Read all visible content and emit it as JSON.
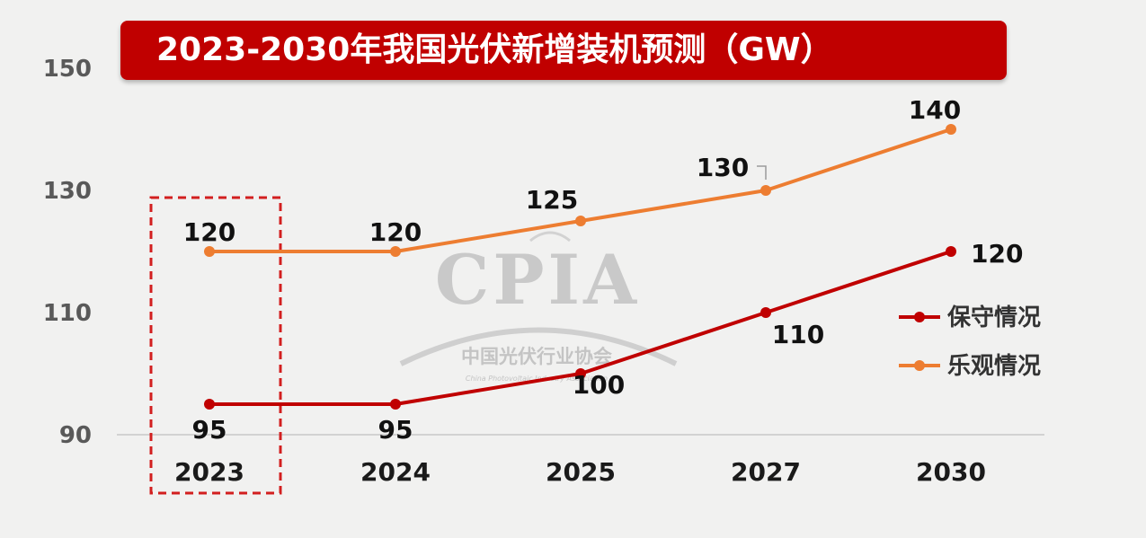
{
  "chart_data": {
    "type": "line",
    "title": "2023-2030年我国光伏新增装机预测（GW）",
    "categories": [
      "2023",
      "2024",
      "2025",
      "2027",
      "2030"
    ],
    "series": [
      {
        "name": "保守情况",
        "values": [
          95,
          95,
          100,
          110,
          120
        ],
        "color": "#c00000"
      },
      {
        "name": "乐观情况",
        "values": [
          120,
          120,
          125,
          130,
          140
        ],
        "color": "#ed7d31"
      }
    ],
    "yticks": [
      "90",
      "110",
      "130",
      "150"
    ],
    "ylim": [
      90,
      150
    ],
    "legend_position": "right",
    "highlighted_category": "2023",
    "grid": false
  },
  "watermark": {
    "logo": "CPIA",
    "org": "中国光伏行业协会",
    "org_en": "China Photovoltaic Industry Association"
  }
}
